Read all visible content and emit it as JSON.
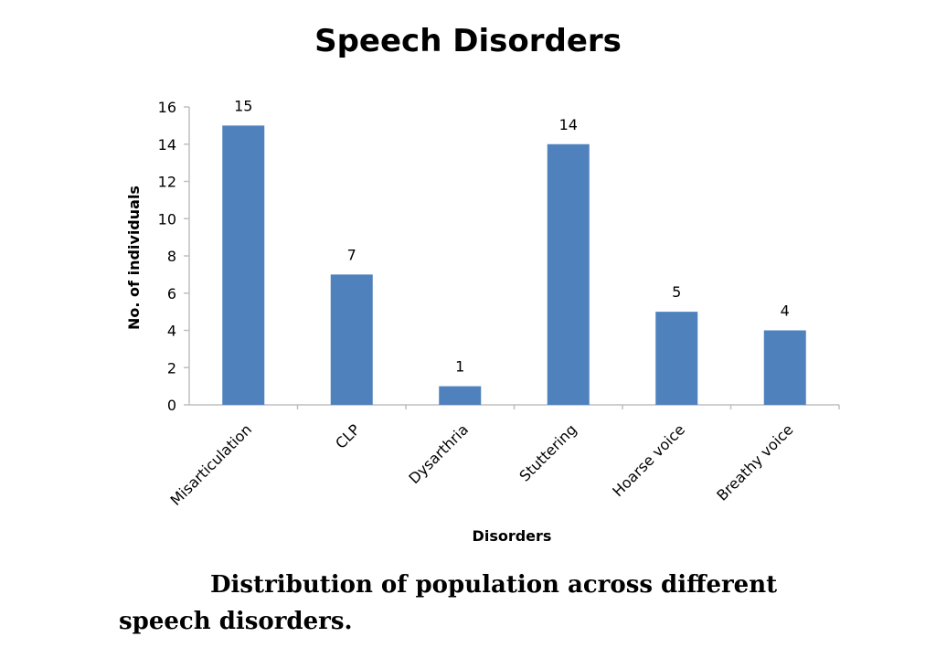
{
  "chart_data": {
    "type": "bar",
    "title": "Speech Disorders",
    "xlabel": "Disorders",
    "ylabel": "No. of individuals",
    "categories": [
      "Misarticulation",
      "CLP",
      "Dysarthria",
      "Stuttering",
      "Hoarse voice",
      "Breathy voice"
    ],
    "values": [
      15,
      7,
      1,
      14,
      5,
      4
    ],
    "data_labels": [
      "15",
      "7",
      "1",
      "14",
      "5",
      "4"
    ],
    "ylim": [
      0,
      16
    ],
    "yticks": [
      0,
      2,
      4,
      6,
      8,
      10,
      12,
      14,
      16
    ],
    "grid": false,
    "legend": "none",
    "bar_color": "#4F81BD"
  },
  "caption": "Distribution of population across different speech disorders."
}
